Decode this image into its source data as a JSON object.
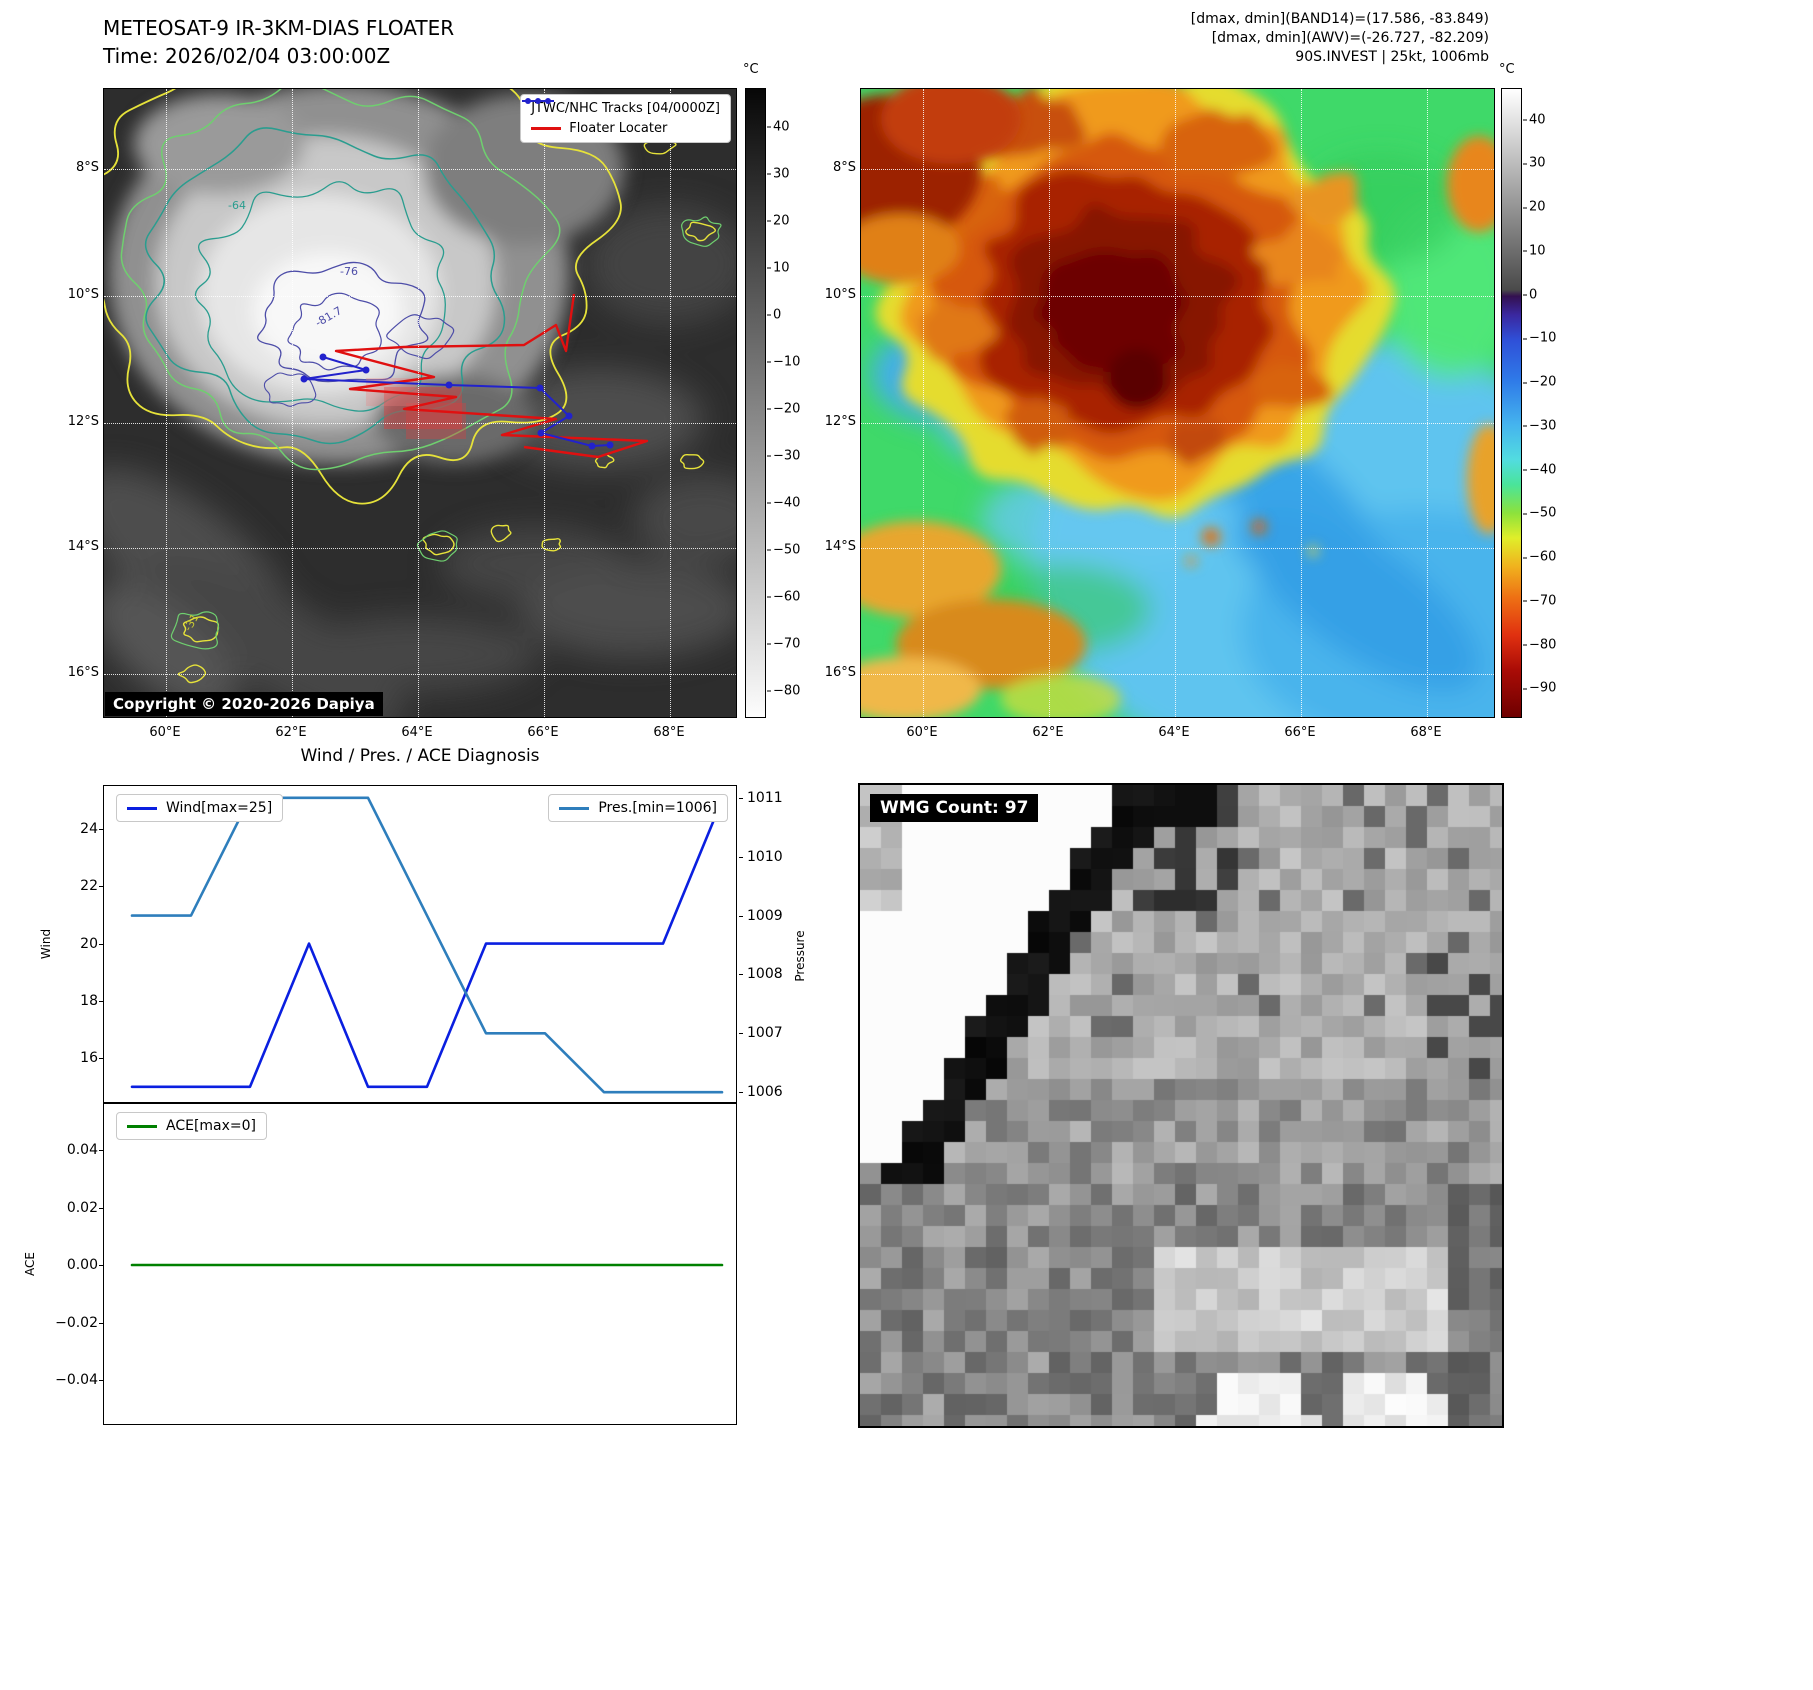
{
  "panel_ir": {
    "title": "METEOSAT-9 IR-3KM-DIAS FLOATER",
    "time_line": "Time: 2026/02/04 03:00:00Z",
    "legend": {
      "tracks_label": "JTWC/NHC Tracks [04/0000Z]",
      "floater_label": "Floater Locater",
      "track_color": "#2222cc",
      "floater_color": "#e01010"
    },
    "copyright": "Copyright © 2020-2026 Dapiya",
    "contour_labels": {
      "outer": "-64",
      "mid": "-76",
      "inner": "-81.7",
      "small": "-31"
    },
    "colorbar": {
      "unit": "°C",
      "ticks": [
        40,
        30,
        20,
        10,
        0,
        -10,
        -20,
        -30,
        -40,
        -50,
        -60,
        -70,
        -80
      ]
    }
  },
  "panel_awv": {
    "header_lines": [
      "[dmax, dmin](BAND14)=(17.586, -83.849)",
      "[dmax, dmin](AWV)=(-26.727, -82.209)",
      "90S.INVEST | 25kt, 1006mb"
    ],
    "colorbar": {
      "unit": "°C",
      "ticks": [
        40,
        30,
        20,
        10,
        0,
        -10,
        -20,
        -30,
        -40,
        -50,
        -60,
        -70,
        -80,
        -90
      ]
    }
  },
  "geo": {
    "lat_ticks": [
      "8°S",
      "10°S",
      "12°S",
      "14°S",
      "16°S"
    ],
    "lon_ticks": [
      "60°E",
      "62°E",
      "64°E",
      "66°E",
      "68°E"
    ]
  },
  "diagnosis": {
    "title": "Wind / Pres. / ACE Diagnosis",
    "wind_axis_label": "Wind",
    "pressure_axis_label": "Pressure",
    "ace_axis_label": "ACE"
  },
  "wmg": {
    "count_label": "WMG Count: 97"
  },
  "chart_data": [
    {
      "type": "line",
      "title": "Wind / Pres. / ACE Diagnosis",
      "x": [
        0,
        1,
        2,
        3,
        4,
        5,
        6,
        7,
        8,
        9,
        10
      ],
      "series": [
        {
          "name": "Wind[max=25]",
          "axis": "left",
          "color": "#0a1fe0",
          "values": [
            15,
            15,
            15,
            20,
            15,
            15,
            20,
            20,
            20,
            20,
            25
          ]
        },
        {
          "name": "Pres.[min=1006]",
          "axis": "right",
          "color": "#2e7ebc",
          "values": [
            1009,
            1009,
            1011,
            1011,
            1011,
            1009,
            1007,
            1007,
            1006,
            1006,
            1006
          ]
        }
      ],
      "left_axis": {
        "label": "Wind",
        "ticks": [
          16,
          18,
          20,
          22,
          24
        ],
        "range": [
          14.4,
          25.5
        ]
      },
      "right_axis": {
        "label": "Pressure",
        "ticks": [
          1006,
          1007,
          1008,
          1009,
          1010,
          1011
        ],
        "range": [
          1005.8,
          1011.2
        ]
      },
      "legend": [
        "upper left",
        "upper right"
      ],
      "grid": false
    },
    {
      "type": "line",
      "x": [
        0,
        1,
        2,
        3,
        4,
        5,
        6,
        7,
        8,
        9,
        10
      ],
      "series": [
        {
          "name": "ACE[max=0]",
          "axis": "left",
          "color": "#008000",
          "values": [
            0,
            0,
            0,
            0,
            0,
            0,
            0,
            0,
            0,
            0,
            0
          ]
        }
      ],
      "left_axis": {
        "label": "ACE",
        "ticks": [
          -0.04,
          -0.02,
          0,
          0.02,
          0.04
        ],
        "range": [
          -0.056,
          0.056
        ],
        "decimals": 2
      },
      "legend": [
        "upper left"
      ],
      "grid": false
    }
  ]
}
